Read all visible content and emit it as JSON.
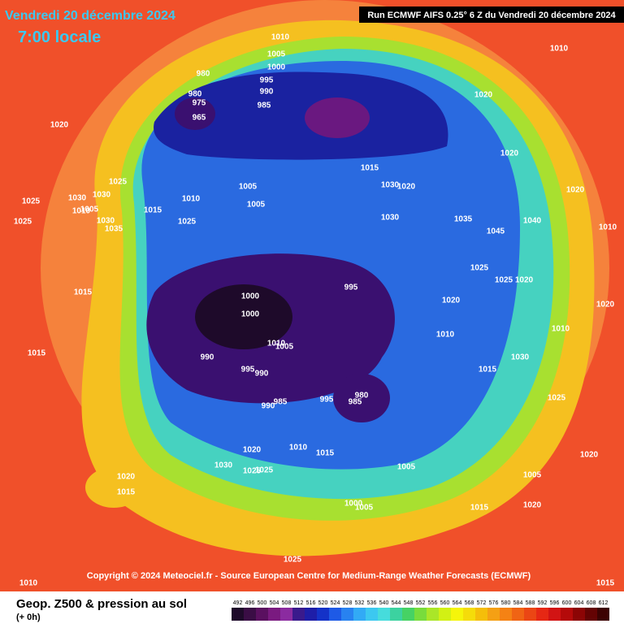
{
  "header": {
    "date": "Vendredi 20 décembre 2024",
    "time": "7:00 locale",
    "run": "Run ECMWF AIFS 0.25° 6 Z du Vendredi 20 décembre 2024"
  },
  "copyright": "Copyright © 2024 Meteociel.fr - Source European Centre for Medium-Range Weather Forecasts (ECMWF)",
  "footer": {
    "title": "Geop. Z500 & pression au sol",
    "step": "(+ 0h)"
  },
  "isobar_labels": [
    "1010",
    "1005",
    "1000",
    "995",
    "990",
    "985",
    "980",
    "975",
    "965",
    "980",
    "1010",
    "1020",
    "1020",
    "1020",
    "1025",
    "1030",
    "1025",
    "1030",
    "1015",
    "1010",
    "1005",
    "1025",
    "1030",
    "1040",
    "1020",
    "1015",
    "1005",
    "1000",
    "1000",
    "995",
    "990",
    "995",
    "990",
    "985",
    "990",
    "995",
    "985",
    "980",
    "1010",
    "1005",
    "1015",
    "1020",
    "1030",
    "1035",
    "1025",
    "1010",
    "1020",
    "1015",
    "1000",
    "1005",
    "1025",
    "1025",
    "1030",
    "1030",
    "1035",
    "1045",
    "1025",
    "1020",
    "1005",
    "1010",
    "1015",
    "1020",
    "1025",
    "1020",
    "1020",
    "1015",
    "1010",
    "1015",
    "1025",
    "1010",
    "1020",
    "1015",
    "1025",
    "1030",
    "1020",
    "1010",
    "1005",
    "1010",
    "1005",
    "1015"
  ],
  "colorbar": {
    "ticks": [
      492,
      496,
      500,
      504,
      508,
      512,
      516,
      520,
      524,
      528,
      532,
      536,
      540,
      544,
      548,
      552,
      556,
      560,
      564,
      568,
      572,
      576,
      580,
      584,
      588,
      592,
      596,
      600,
      604,
      608,
      612
    ],
    "colors": [
      "#1e0a2a",
      "#3a0d45",
      "#5a1060",
      "#7a1a80",
      "#8b2ba0",
      "#3a1a8c",
      "#1e1ea8",
      "#1432c8",
      "#1e5ae6",
      "#2882f0",
      "#32aaf5",
      "#3cc8f0",
      "#46dcdc",
      "#3cd2a0",
      "#46d264",
      "#78dc3c",
      "#aae628",
      "#d2f014",
      "#f5f50a",
      "#f5dc0a",
      "#f5be0a",
      "#f5a014",
      "#f58214",
      "#f06414",
      "#eb4614",
      "#e62814",
      "#d21414",
      "#b40a0a",
      "#8c0505",
      "#640303",
      "#3c0202"
    ]
  }
}
